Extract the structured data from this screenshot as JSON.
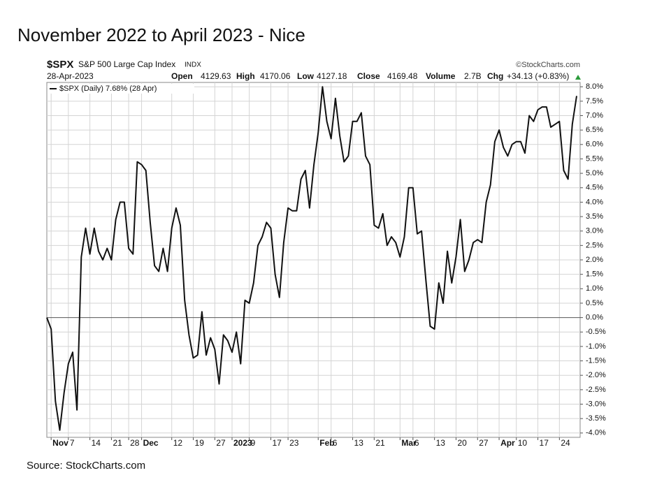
{
  "chart_data": {
    "type": "line",
    "title": "November 2022 to April 2023 - Nice",
    "symbol": "$SPX",
    "index_name": "S&P 500 Large Cap Index",
    "exchange": "INDX",
    "watermark": "©StockCharts.com",
    "date": "28-Apr-2023",
    "quote": [
      {
        "label": "Open",
        "value": "4129.63"
      },
      {
        "label": "High",
        "value": "4170.06"
      },
      {
        "label": "Low",
        "value": "4127.18"
      },
      {
        "label": "Close",
        "value": "4169.48"
      },
      {
        "label": "Volume",
        "value": "2.7B"
      },
      {
        "label": "Chg",
        "value": "+34.13 (+0.83%)"
      }
    ],
    "source": "Source: StockCharts.com",
    "categories": [
      null,
      "Nov",
      null,
      null,
      null,
      "7",
      null,
      null,
      null,
      null,
      "14",
      null,
      null,
      null,
      null,
      "21",
      null,
      null,
      null,
      "28",
      null,
      null,
      "Dec",
      null,
      null,
      null,
      null,
      null,
      null,
      "12",
      null,
      null,
      null,
      null,
      "19",
      null,
      null,
      null,
      null,
      "27",
      null,
      null,
      null,
      "2023",
      null,
      null,
      null,
      "9",
      null,
      null,
      null,
      null,
      "17",
      null,
      null,
      null,
      "23",
      null,
      null,
      null,
      null,
      null,
      null,
      "Feb",
      null,
      null,
      "6",
      null,
      null,
      null,
      null,
      "13",
      null,
      null,
      null,
      null,
      "21",
      null,
      null,
      null,
      null,
      null,
      "Mar",
      null,
      null,
      "6",
      null,
      null,
      null,
      null,
      "13",
      null,
      null,
      null,
      null,
      "20",
      null,
      null,
      null,
      null,
      "27",
      null,
      null,
      null,
      null,
      "Apr",
      null,
      null,
      null,
      "10",
      null,
      null,
      null,
      null,
      "17",
      null,
      null,
      null,
      null,
      "24",
      null,
      null,
      null,
      null
    ],
    "series": [
      {
        "name": "$SPX (Daily) 7.68% (28 Apr)",
        "color": "#111111",
        "values": [
          0.0,
          -0.4,
          -2.9,
          -3.9,
          -2.6,
          -1.6,
          -1.2,
          -3.2,
          2.1,
          3.1,
          2.2,
          3.1,
          2.3,
          2.0,
          2.4,
          2.0,
          3.4,
          4.0,
          4.0,
          2.4,
          2.2,
          5.4,
          5.3,
          5.1,
          3.3,
          1.8,
          1.6,
          2.4,
          1.6,
          3.1,
          3.8,
          3.2,
          0.6,
          -0.6,
          -1.4,
          -1.3,
          0.2,
          -1.3,
          -0.7,
          -1.1,
          -2.3,
          -0.6,
          -0.8,
          -1.2,
          -0.5,
          -1.6,
          0.6,
          0.5,
          1.2,
          2.5,
          2.8,
          3.3,
          3.1,
          1.5,
          0.7,
          2.6,
          3.8,
          3.7,
          3.7,
          4.8,
          5.1,
          3.8,
          5.3,
          6.4,
          8.0,
          6.8,
          6.2,
          7.6,
          6.3,
          5.4,
          5.6,
          6.8,
          6.8,
          7.1,
          5.6,
          5.3,
          3.2,
          3.1,
          3.6,
          2.5,
          2.8,
          2.6,
          2.1,
          2.8,
          4.5,
          4.5,
          2.9,
          3.0,
          1.3,
          -0.3,
          -0.4,
          1.2,
          0.5,
          2.3,
          1.2,
          2.1,
          3.4,
          1.6,
          2.0,
          2.6,
          2.7,
          2.6,
          4.0,
          4.6,
          6.1,
          6.5,
          5.9,
          5.6,
          6.0,
          6.1,
          6.1,
          5.7,
          7.0,
          6.8,
          7.2,
          7.3,
          7.3,
          6.6,
          6.7,
          6.8,
          5.1,
          4.8,
          6.7,
          7.68
        ]
      }
    ],
    "ylim": [
      -4.15,
      8.15
    ],
    "yticks": [
      {
        "value": 8.0,
        "label": "8.0%"
      },
      {
        "value": 7.5,
        "label": "7.5%"
      },
      {
        "value": 7.0,
        "label": "7.0%"
      },
      {
        "value": 6.5,
        "label": "6.5%"
      },
      {
        "value": 6.0,
        "label": "6.0%"
      },
      {
        "value": 5.5,
        "label": "5.5%"
      },
      {
        "value": 5.0,
        "label": "5.0%"
      },
      {
        "value": 4.5,
        "label": "4.5%"
      },
      {
        "value": 4.0,
        "label": "4.0%"
      },
      {
        "value": 3.5,
        "label": "3.5%"
      },
      {
        "value": 3.0,
        "label": "3.0%"
      },
      {
        "value": 2.5,
        "label": "2.5%"
      },
      {
        "value": 2.0,
        "label": "2.0%"
      },
      {
        "value": 1.5,
        "label": "1.5%"
      },
      {
        "value": 1.0,
        "label": "1.0%"
      },
      {
        "value": 0.5,
        "label": "0.5%"
      },
      {
        "value": 0.0,
        "label": "0.0%"
      },
      {
        "value": -0.5,
        "label": "-0.5%"
      },
      {
        "value": -1.0,
        "label": "-1.0%"
      },
      {
        "value": -1.5,
        "label": "-1.5%"
      },
      {
        "value": -2.0,
        "label": "-2.0%"
      },
      {
        "value": -2.5,
        "label": "-2.5%"
      },
      {
        "value": -3.0,
        "label": "-3.0%"
      },
      {
        "value": -3.5,
        "label": "-3.5%"
      },
      {
        "value": -4.0,
        "label": "-4.0%"
      }
    ],
    "grid": true
  }
}
